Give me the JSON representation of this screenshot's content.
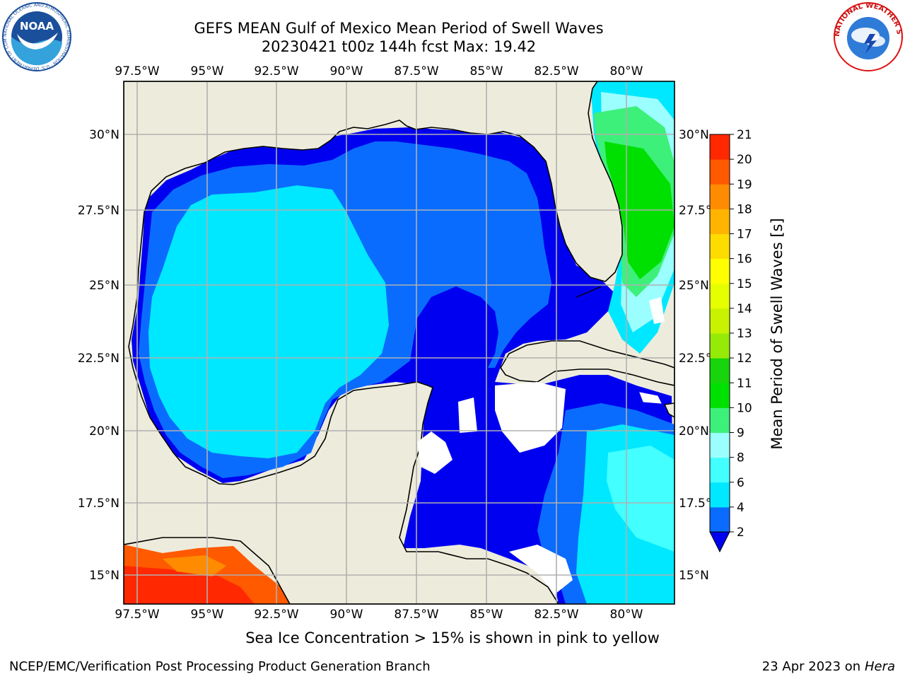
{
  "header": {
    "title": "GEFS MEAN Gulf of Mexico Mean Period of Swell Waves",
    "subtitle": "20230421 t00z 144h fcst   Max: 19.42"
  },
  "map": {
    "lon_labels": [
      "97.5°W",
      "95°W",
      "92.5°W",
      "90°W",
      "87.5°W",
      "85°W",
      "82.5°W",
      "80°W"
    ],
    "lat_labels": [
      "30°N",
      "27.5°N",
      "25°N",
      "22.5°N",
      "20°N",
      "17.5°N",
      "15°N"
    ],
    "lon_range": [
      -98,
      -79
    ],
    "lat_range": [
      14,
      32
    ],
    "colors": {
      "land": "#edecdc",
      "grid": "#b0b0b0",
      "coast": "#000000"
    }
  },
  "colorbar": {
    "label": "Mean Period of Swell Waves [s]",
    "ticks": [
      "2",
      "4",
      "6",
      "8",
      "9",
      "10",
      "11",
      "12",
      "13",
      "14",
      "15",
      "16",
      "17",
      "18",
      "19",
      "20",
      "21"
    ],
    "colors": [
      "#0a6cff",
      "#00e8ff",
      "#43ffff",
      "#9cffff",
      "#3df07a",
      "#00e000",
      "#18d40c",
      "#96ea08",
      "#c8f200",
      "#e6ff00",
      "#ffff00",
      "#ffdc00",
      "#ffb400",
      "#ff8c00",
      "#ff5a00",
      "#ff2800",
      "#ff0000"
    ],
    "under_color": "#0000f0"
  },
  "footer": {
    "note": "Sea Ice Concentration > 15% is shown in pink to yellow",
    "credit": "NCEP/EMC/Verification Post Processing Product Generation Branch",
    "date": "23 Apr 2023 on",
    "machine": "Hera"
  },
  "logos": {
    "left": "NOAA",
    "left_ring": "NATIONAL OCEANIC AND ATMOSPHERIC ADMINISTRATION · U.S. DEPARTMENT OF COMMERCE",
    "right_ring": "NATIONAL WEATHER SERVICE"
  }
}
